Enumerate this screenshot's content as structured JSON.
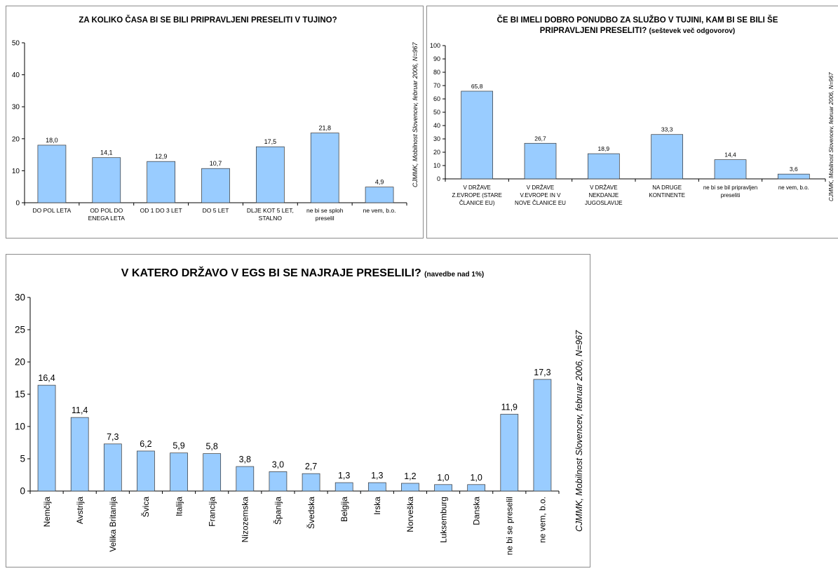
{
  "colors": {
    "bar": "#99ccff",
    "bar_edge": "#333333",
    "axis": "#000000",
    "frame": "#8c8c8c"
  },
  "chart_data": [
    {
      "type": "bar",
      "title": "ZA KOLIKO ČASA BI SE BILI PRIPRAVLJENI PRESELITI V TUJINO?",
      "subtitle": "",
      "source_note": "CJMMK, Mobilnost Slovencev, februar 2006, N=967",
      "categories": [
        "DO POL LETA",
        "OD POL DO ENEGA LETA",
        "OD 1 DO 3 LET",
        "DO 5 LET",
        "DLJE KOT 5 LET, STALNO",
        "ne bi se sploh preselil",
        "ne vem, b.o."
      ],
      "category_lines": [
        [
          "DO POL LETA"
        ],
        [
          "OD POL DO",
          "ENEGA LETA"
        ],
        [
          "OD 1 DO 3 LET"
        ],
        [
          "DO 5 LET"
        ],
        [
          "DLJE KOT 5 LET,",
          "STALNO"
        ],
        [
          "ne bi se sploh",
          "preselil"
        ],
        [
          "ne vem, b.o."
        ]
      ],
      "values": [
        18.0,
        14.1,
        12.9,
        10.7,
        17.5,
        21.8,
        4.9
      ],
      "value_labels": [
        "18,0",
        "14,1",
        "12,9",
        "10,7",
        "17,5",
        "21,8",
        "4,9"
      ],
      "ylim": [
        0,
        50
      ],
      "yticks": [
        0,
        10,
        20,
        30,
        40,
        50
      ],
      "xlabel": "",
      "ylabel": "",
      "grid": false,
      "legend": "none"
    },
    {
      "type": "bar",
      "title": "ČE BI IMELI DOBRO PONUDBO ZA SLUŽBO V TUJINI, KAM BI SE BILI ŠE PRIPRAVLJENI PRESELITI?",
      "subtitle": "(seštevek več odgovorov)",
      "source_note": "CJMMK, Mobilnost Slovencev, februar 2006, N=967",
      "categories": [
        "V DRŽAVE Z.EVROPE (STARE ČLANICE EU)",
        "V DRŽAVE V.EVROPE IN V NOVE ČLANICE EU",
        "V DRŽAVE NEKDANJE JUGOSLAVIJE",
        "NA DRUGE KONTINENTE",
        "ne bi se bil pripravljen preseliti",
        "ne vem, b.o."
      ],
      "category_lines": [
        [
          "V DRŽAVE",
          "Z.EVROPE (STARE",
          "ČLANICE EU)"
        ],
        [
          "V DRŽAVE",
          "V.EVROPE IN V",
          "NOVE ČLANICE EU"
        ],
        [
          "V DRŽAVE",
          "NEKDANJE",
          "JUGOSLAVIJE"
        ],
        [
          "NA DRUGE",
          "KONTINENTE"
        ],
        [
          "ne bi se bil pripravljen",
          "preseliti"
        ],
        [
          "ne vem, b.o."
        ]
      ],
      "values": [
        65.8,
        26.7,
        18.9,
        33.3,
        14.4,
        3.6
      ],
      "value_labels": [
        "65,8",
        "26,7",
        "18,9",
        "33,3",
        "14,4",
        "3,6"
      ],
      "ylim": [
        0,
        100
      ],
      "yticks": [
        0,
        10,
        20,
        30,
        40,
        50,
        60,
        70,
        80,
        90,
        100
      ],
      "xlabel": "",
      "ylabel": "",
      "grid": false,
      "legend": "none"
    },
    {
      "type": "bar",
      "title": "V KATERO DRŽAVO V EGS BI SE NAJRAJE PRESELILI?",
      "subtitle": "(navedbe nad 1%)",
      "source_note": "CJMMK, Mobilnost Slovencev, februar 2006, N=967",
      "categories": [
        "Nemčija",
        "Avstrija",
        "Velika Britanija",
        "Švica",
        "Italija",
        "Francija",
        "Nizozemska",
        "Španija",
        "Švedska",
        "Belgija",
        "Irska",
        "Norveška",
        "Luksemburg",
        "Danska",
        "ne bi se preselil",
        "ne vem, b.o."
      ],
      "values": [
        16.4,
        11.4,
        7.3,
        6.2,
        5.9,
        5.8,
        3.8,
        3.0,
        2.7,
        1.3,
        1.3,
        1.2,
        1.0,
        1.0,
        11.9,
        17.3
      ],
      "value_labels": [
        "16,4",
        "11,4",
        "7,3",
        "6,2",
        "5,9",
        "5,8",
        "3,8",
        "3,0",
        "2,7",
        "1,3",
        "1,3",
        "1,2",
        "1,0",
        "1,0",
        "11,9",
        "17,3"
      ],
      "ylim": [
        0,
        30
      ],
      "yticks": [
        0,
        5,
        10,
        15,
        20,
        25,
        30
      ],
      "xlabel": "",
      "ylabel": "",
      "grid": false,
      "legend": "none"
    }
  ]
}
